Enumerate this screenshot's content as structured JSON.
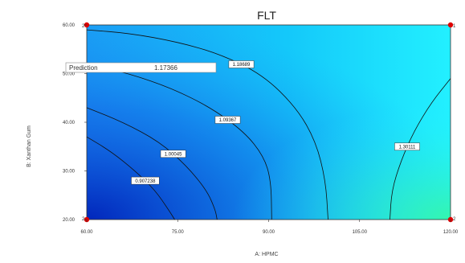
{
  "chart_data": {
    "type": "contour",
    "title": "FLT",
    "xlabel": "A: HPMC",
    "ylabel": "B: Xanthan Gum",
    "xlim": [
      60,
      120
    ],
    "ylim": [
      20,
      60
    ],
    "x_ticks": [
      "60.00",
      "75.00",
      "90.00",
      "105.00",
      "120.00"
    ],
    "y_ticks": [
      "20.00",
      "30.00",
      "40.00",
      "50.00",
      "60.00"
    ],
    "design_points": [
      {
        "x": 60,
        "y": 20,
        "label": "2"
      },
      {
        "x": 60,
        "y": 60,
        "label": "2"
      },
      {
        "x": 120,
        "y": 60,
        "label": "1"
      },
      {
        "x": 120,
        "y": 20,
        "label": "2"
      }
    ],
    "contours": [
      {
        "label": "0.907238",
        "points": [
          [
            60,
            37
          ],
          [
            64,
            34
          ],
          [
            68,
            30
          ],
          [
            71.3,
            26
          ],
          [
            73.5,
            22
          ],
          [
            74.5,
            20
          ]
        ]
      },
      {
        "label": "1.00045",
        "points": [
          [
            60,
            43
          ],
          [
            66,
            40
          ],
          [
            72,
            36
          ],
          [
            76.5,
            31
          ],
          [
            79.8,
            26
          ],
          [
            81.2,
            22
          ],
          [
            81.5,
            20
          ]
        ]
      },
      {
        "label": "1.09367",
        "points": [
          [
            60,
            52
          ],
          [
            67,
            50
          ],
          [
            74,
            47
          ],
          [
            80.5,
            43
          ],
          [
            86,
            38
          ],
          [
            89.2,
            33
          ],
          [
            90.4,
            28
          ],
          [
            90.5,
            20
          ]
        ]
      },
      {
        "label": "1.18689",
        "points": [
          [
            60,
            59
          ],
          [
            67,
            58.3
          ],
          [
            75,
            56.5
          ],
          [
            82,
            54
          ],
          [
            89,
            49.8
          ],
          [
            94.6,
            43
          ],
          [
            97.8,
            36
          ],
          [
            99.4,
            28
          ],
          [
            99.8,
            20
          ]
        ]
      },
      {
        "label": "1.30111",
        "points": [
          [
            110,
            20
          ],
          [
            110.3,
            26
          ],
          [
            111.8,
            32
          ],
          [
            113.9,
            38
          ],
          [
            116.8,
            44
          ],
          [
            120,
            49
          ]
        ]
      }
    ],
    "prediction": {
      "label": "Prediction",
      "value": "1.17366"
    },
    "colors": {
      "low": "#0a2fd0",
      "mid": "#1a9df5",
      "high_cyan": "#22f0ff",
      "high_green": "#36f7a6",
      "design_point": "#dd0000",
      "contour_line": "#111111"
    }
  }
}
